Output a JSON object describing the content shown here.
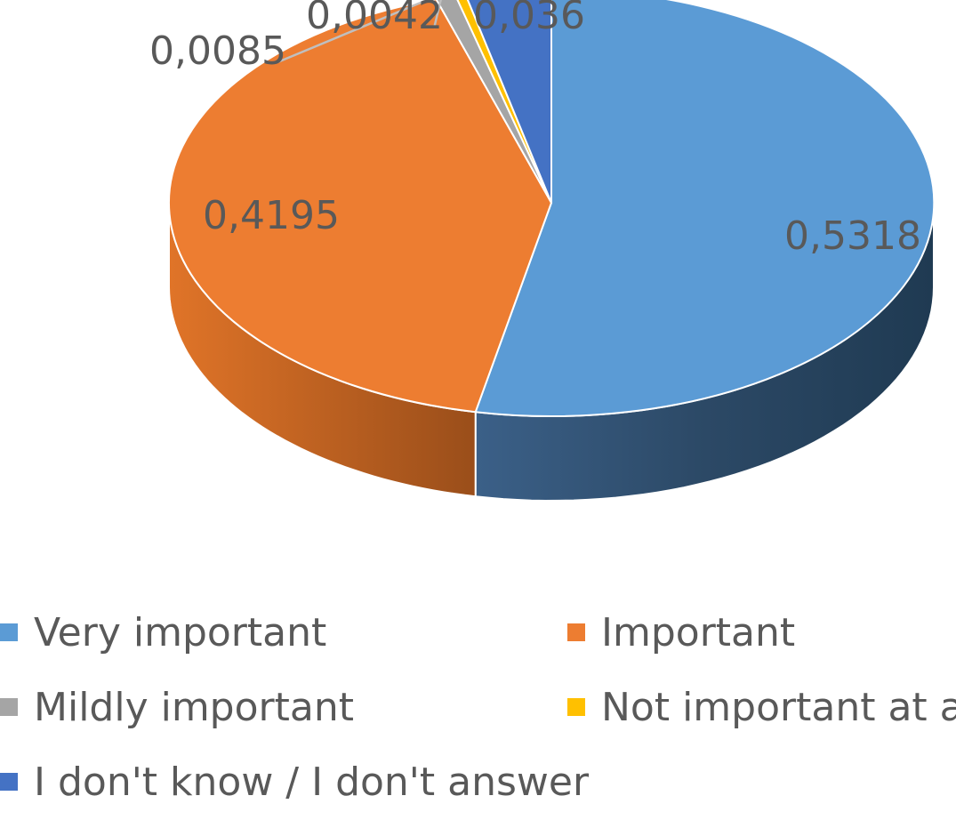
{
  "chart_data": {
    "type": "pie",
    "style": "3d",
    "title": "",
    "legend_position": "bottom",
    "categories": [
      "Very important",
      "Important",
      "Mildly important",
      "Not important at all",
      "I don't know / I don't answer"
    ],
    "values": [
      0.5318,
      0.4195,
      0.0085,
      0.0042,
      0.036
    ],
    "value_labels": [
      "0,5318",
      "0,4195",
      "0,0085",
      "0,0042",
      "0,036"
    ],
    "colors": [
      "#5B9BD5",
      "#ED7D31",
      "#A5A5A5",
      "#FFC000",
      "#4472C4"
    ]
  }
}
